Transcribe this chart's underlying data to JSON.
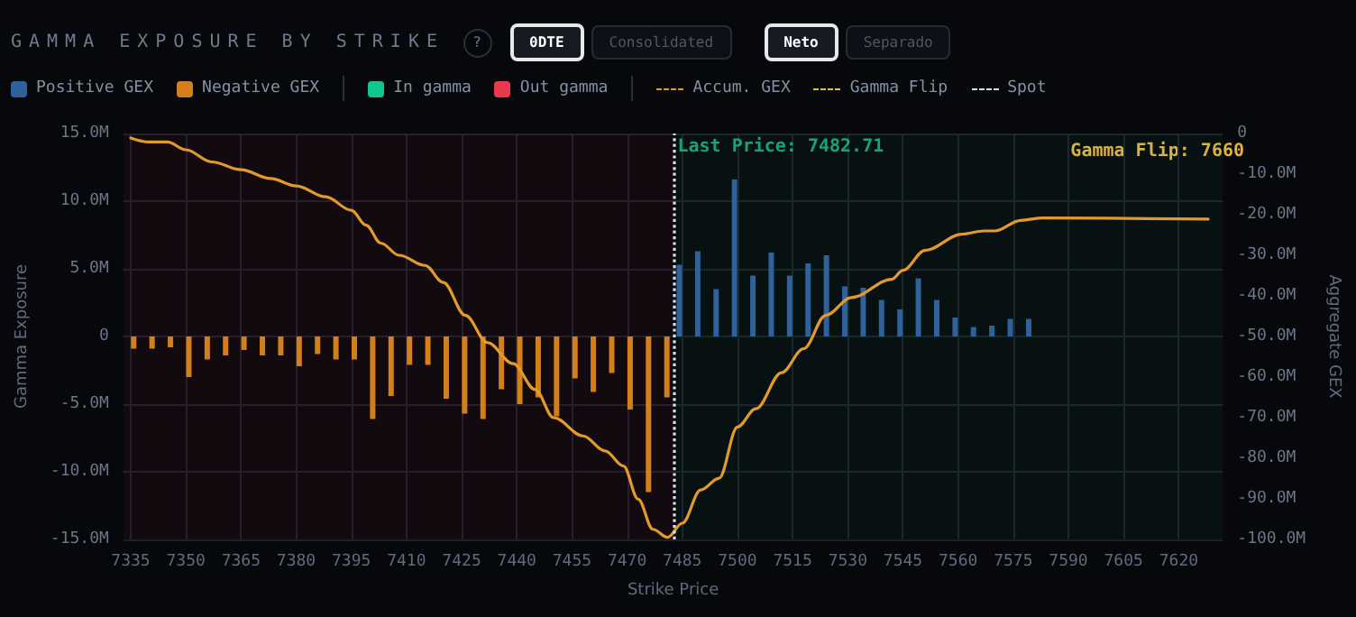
{
  "chart_data": {
    "type": "bar",
    "title": "GAMMA EXPOSURE BY STRIKE",
    "xlabel": "Strike Price",
    "ylabel": "Gamma Exposure",
    "y2label": "Aggregate GEX",
    "annotations": [
      "?",
      "0DTE",
      "Consolidated",
      "Neto",
      "Separado",
      "Gamma Flip",
      "Gamma Flip: 7660",
      {
        "text": "Last Price: 7482.71",
        "x": 7482.71,
        "y": 14
      }
    ],
    "series": [
      {
        "name": "Positive GEX",
        "color": "#2f619a",
        "x": [
          7485,
          7490,
          7495,
          7500,
          7505,
          7510,
          7515,
          7520,
          7525,
          7530,
          7535,
          7540,
          7545,
          7550,
          7555,
          7560,
          7565,
          7570,
          7575,
          7580
        ],
        "values": [
          5.3,
          6.3,
          3.5,
          11.6,
          4.5,
          6.2,
          4.5,
          5.4,
          6.0,
          3.7,
          3.6,
          2.7,
          2.0,
          4.3,
          2.7,
          1.4,
          0.7,
          0.8,
          1.3,
          1.3
        ]
      },
      {
        "name": "Negative GEX",
        "color": "#d4801a",
        "x": [
          7335,
          7340,
          7345,
          7350,
          7355,
          7360,
          7365,
          7370,
          7375,
          7380,
          7385,
          7390,
          7395,
          7400,
          7405,
          7410,
          7415,
          7420,
          7425,
          7430,
          7435,
          7440,
          7445,
          7450,
          7455,
          7460,
          7465,
          7470,
          7475,
          7480
        ],
        "values": [
          -0.9,
          -0.9,
          -0.8,
          -3.0,
          -1.7,
          -1.4,
          -1.0,
          -1.4,
          -1.4,
          -2.2,
          -1.3,
          -1.7,
          -1.7,
          -6.1,
          -4.4,
          -2.1,
          -2.1,
          -4.6,
          -5.7,
          -6.1,
          -3.9,
          -5.0,
          -4.5,
          -5.9,
          -3.1,
          -4.1,
          -2.7,
          -5.4,
          -11.5,
          -4.5
        ]
      },
      {
        "name": "Accum. GEX",
        "type": "line",
        "axis": "y2",
        "color": "#e39a2d",
        "marker": "none",
        "line_style": "solid",
        "x": [
          7335,
          7340,
          7345,
          7350,
          7357,
          7365,
          7373,
          7380,
          7388,
          7395,
          7399,
          7403,
          7408,
          7415,
          7420,
          7426,
          7432,
          7439,
          7445,
          7450,
          7458,
          7464,
          7469,
          7473,
          7477,
          7481,
          7485,
          7490,
          7495,
          7500,
          7505,
          7512,
          7518,
          7524,
          7531,
          7542,
          7545,
          7551,
          7561,
          7567,
          7570,
          7577,
          7583,
          7628
        ],
        "values": [
          -1.1,
          -2.1,
          -2.1,
          -4.0,
          -7.0,
          -8.9,
          -11.1,
          -12.9,
          -15.6,
          -18.9,
          -22.6,
          -27.0,
          -30.0,
          -32.5,
          -36.7,
          -44.8,
          -51.5,
          -56.7,
          -63.1,
          -70.0,
          -74.5,
          -78.2,
          -81.9,
          -90.1,
          -97.5,
          -99.5,
          -96.0,
          -87.8,
          -84.9,
          -72.3,
          -67.8,
          -58.9,
          -53.0,
          -44.8,
          -40.4,
          -35.9,
          -33.7,
          -28.8,
          -24.8,
          -24.0,
          -24.0,
          -21.4,
          -20.8,
          -21.1
        ]
      }
    ],
    "xlim": [
      7333,
      7632
    ],
    "xticks": [
      7335,
      7350,
      7365,
      7380,
      7395,
      7410,
      7425,
      7440,
      7455,
      7470,
      7485,
      7500,
      7515,
      7530,
      7545,
      7560,
      7575,
      7590,
      7605,
      7620
    ],
    "ylim": [
      -15,
      15
    ],
    "yticks": [
      {
        "value": -15,
        "label": "-15.0M"
      },
      {
        "value": -10,
        "label": "-10.0M"
      },
      {
        "value": -5,
        "label": "-5.0M"
      },
      0,
      {
        "value": 5,
        "label": "5.0M"
      },
      {
        "value": 10,
        "label": "10.0M"
      },
      {
        "value": 15,
        "label": "15.0M"
      }
    ],
    "y2lim": [
      -100,
      0
    ],
    "y2ticks": [
      {
        "value": -100,
        "label": "-100.0M"
      },
      {
        "value": -90,
        "label": "-90.0M"
      },
      {
        "value": -80,
        "label": "-80.0M"
      },
      {
        "value": -70,
        "label": "-70.0M"
      },
      {
        "value": -60,
        "label": "-60.0M"
      },
      {
        "value": -50,
        "label": "-50.0M"
      },
      {
        "value": -40,
        "label": "-40.0M"
      },
      {
        "value": -30,
        "label": "-30.0M"
      },
      {
        "value": -20,
        "label": "-20.0M"
      },
      {
        "value": -10,
        "label": "-10.0M"
      },
      0
    ],
    "bands": [
      {
        "axis": "x",
        "from": 7482.71,
        "to": 7632,
        "label": "In gamma",
        "color": "#10c88a"
      },
      {
        "axis": "x",
        "from": 7333,
        "to": 7482.71,
        "label": "Out gamma",
        "color": "#e8394f"
      }
    ],
    "ref_lines": [
      {
        "axis": "x",
        "value": 7482.71,
        "label": "Spot",
        "color": "#d8dde6",
        "line_style": "dotted"
      }
    ],
    "grid": true,
    "legend": "top"
  }
}
